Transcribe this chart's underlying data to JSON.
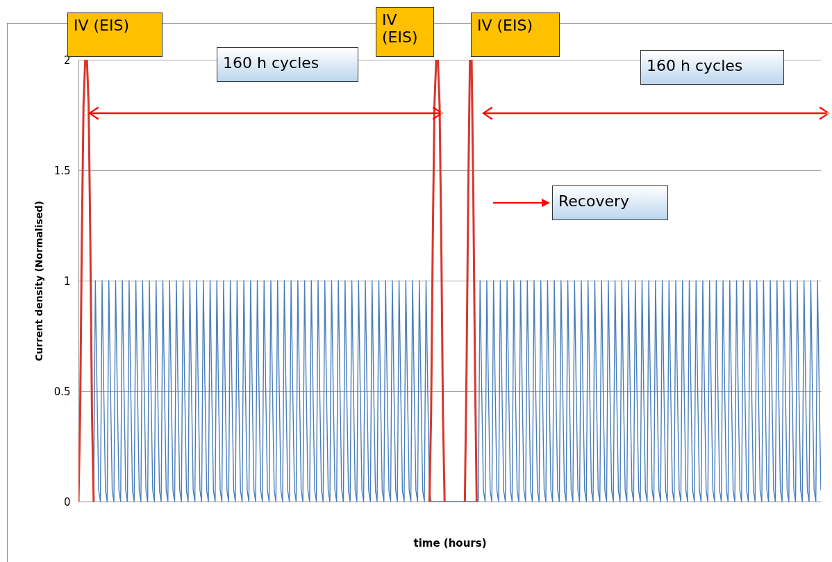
{
  "chart_data": {
    "type": "line",
    "xlabel": "time (hours)",
    "ylabel": "Current density (Normalised)",
    "categories": [
      null,
      null,
      null,
      null,
      null,
      null,
      null,
      null,
      null,
      null,
      null,
      null,
      null,
      null,
      null,
      null,
      null,
      null,
      null,
      null,
      null,
      null,
      null,
      null,
      null,
      null,
      null,
      null,
      null,
      null,
      null,
      null,
      null,
      null,
      null,
      null,
      null,
      null,
      null,
      null,
      null,
      null,
      null,
      null,
      null,
      null,
      null,
      null,
      null,
      null,
      null,
      null,
      null,
      null,
      null,
      null,
      null,
      null,
      null,
      null,
      null,
      null,
      null,
      null,
      null,
      null,
      null,
      null,
      null,
      null,
      null,
      null,
      null,
      null,
      null,
      null,
      null,
      null,
      null,
      null,
      null,
      null,
      null,
      null,
      null,
      null,
      null,
      null,
      null,
      null,
      null,
      null,
      null,
      null,
      null,
      null,
      null,
      null,
      null,
      null,
      null,
      null,
      null,
      null,
      null,
      null,
      null,
      null,
      null,
      null,
      null,
      null,
      null,
      null,
      null,
      null,
      null,
      null,
      null,
      null,
      null,
      null,
      null,
      null,
      null,
      null,
      null,
      null,
      null,
      null,
      null,
      null,
      null,
      null,
      null,
      null,
      null,
      null,
      null,
      null,
      null,
      null,
      null,
      null,
      null,
      null,
      null,
      null,
      null,
      null,
      null,
      null,
      null,
      null,
      null,
      null,
      null,
      null,
      null,
      null,
      null,
      null,
      null,
      null,
      null,
      null,
      null,
      null,
      null,
      null,
      null,
      null,
      null,
      null,
      null,
      null,
      null,
      null,
      null,
      null,
      null,
      null,
      null,
      null,
      null,
      null,
      null,
      null,
      null,
      null,
      null,
      null,
      null,
      null,
      null,
      null,
      null,
      null,
      null,
      null,
      null,
      null,
      null,
      null,
      null,
      null,
      null,
      null,
      null,
      null,
      null,
      null,
      null,
      null,
      null,
      null,
      null,
      null,
      null,
      null,
      null,
      null,
      null,
      null,
      null,
      null,
      null,
      null,
      null,
      null,
      null,
      null,
      null,
      null,
      null,
      null,
      null,
      null,
      null,
      null,
      null,
      null,
      null,
      null,
      null,
      null,
      null,
      null,
      null,
      null,
      null,
      null,
      null,
      null,
      null,
      null,
      null,
      null,
      null,
      null,
      null,
      null,
      null,
      null,
      null,
      null,
      null,
      null,
      null,
      null,
      null,
      null,
      null,
      null,
      null,
      null,
      null,
      null,
      null,
      null,
      null,
      null,
      null,
      null,
      null,
      null,
      null,
      null,
      null,
      null,
      null,
      null,
      null,
      null,
      null,
      null,
      null,
      null,
      null,
      null,
      null,
      null,
      null,
      null,
      null,
      null,
      null,
      null,
      null,
      null,
      null,
      null,
      null,
      null,
      null,
      null,
      null,
      null,
      null,
      null,
      null,
      null,
      null,
      null,
      null,
      null,
      null,
      null,
      null,
      null,
      null,
      null,
      null,
      null,
      null,
      null,
      null,
      null,
      null,
      null,
      null,
      null,
      null,
      null,
      null,
      null,
      null,
      null,
      null,
      null,
      null,
      null,
      null,
      null,
      null,
      null,
      null,
      null,
      null,
      null,
      null,
      null,
      null,
      null,
      null,
      null,
      null,
      null,
      null,
      null,
      null,
      null,
      null,
      null,
      null,
      null,
      null,
      null,
      null,
      null,
      null,
      null,
      null,
      null,
      null,
      null,
      null,
      null,
      null,
      null,
      null,
      null,
      null,
      null,
      null,
      null,
      null,
      null,
      null,
      null,
      null,
      null,
      null,
      null,
      null,
      null,
      null,
      null,
      null,
      null,
      null,
      null,
      null,
      null,
      null,
      null,
      null,
      null,
      null,
      null,
      null,
      null,
      null,
      null,
      null,
      null,
      null,
      null,
      null,
      null,
      null,
      null,
      null,
      null,
      null,
      null,
      null,
      null,
      null,
      null,
      null
    ],
    "series": [
      {
        "color": "#4a7ebb",
        "values": [
          null,
          null,
          null,
          null,
          null,
          null,
          null,
          null,
          null,
          0,
          1,
          0.5,
          0.05,
          0,
          1,
          0.5,
          0.05,
          0,
          1,
          0.5,
          0.05,
          0,
          1,
          0.5,
          0.05,
          0,
          1,
          0.5,
          0.05,
          0,
          1,
          0.5,
          0.05,
          0,
          1,
          0.5,
          0.05,
          0,
          1,
          0.5,
          0.05,
          0,
          1,
          0.5,
          0.05,
          0,
          1,
          0.5,
          0.05,
          0,
          1,
          0.5,
          0.05,
          0,
          1,
          0.5,
          0.05,
          0,
          1,
          0.5,
          0.05,
          0,
          1,
          0.5,
          0.05,
          0,
          1,
          0.5,
          0.05,
          0,
          1,
          0.5,
          0.05,
          0,
          1,
          0.5,
          0.05,
          0,
          1,
          0.5,
          0.05,
          0,
          1,
          0.5,
          0.05,
          0,
          1,
          0.5,
          0.05,
          0,
          1,
          0.5,
          0.05,
          0,
          1,
          0.5,
          0.05,
          0,
          1,
          0.5,
          0.05,
          0,
          1,
          0.5,
          0.05,
          0,
          1,
          0.5,
          0.05,
          0,
          1,
          0.5,
          0.05,
          0,
          1,
          0.5,
          0.05,
          0,
          1,
          0.5,
          0.05,
          0,
          1,
          0.5,
          0.05,
          0,
          1,
          0.5,
          0.05,
          0,
          1,
          0.5,
          0.05,
          0,
          1,
          0.5,
          0.05,
          0,
          1,
          0.5,
          0.05,
          0,
          1,
          0.5,
          0.05,
          0,
          1,
          0.5,
          0.05,
          0,
          1,
          0.5,
          0.05,
          0,
          1,
          0.5,
          0.05,
          0,
          1,
          0.5,
          0.05,
          0,
          1,
          0.5,
          0.05,
          0,
          1,
          0.5,
          0.05,
          0,
          1,
          0.5,
          0.05,
          0,
          1,
          0.5,
          0.05,
          0,
          1,
          0.5,
          0.05,
          0,
          1,
          0.5,
          0.05,
          0,
          1,
          0.5,
          0.05,
          0,
          1,
          0.5,
          0.05,
          0,
          1,
          0.5,
          0.05,
          0,
          1,
          0.5,
          0.05,
          0,
          1,
          0.5,
          0.05,
          0,
          1,
          0.5,
          0.05,
          0,
          0,
          0,
          0,
          0,
          0,
          0,
          0,
          0,
          0,
          0,
          0,
          0,
          0,
          0,
          0,
          0,
          0,
          0,
          0,
          0,
          0,
          0,
          0,
          0,
          0,
          0,
          0,
          0,
          1,
          0.5,
          0.05,
          0,
          1,
          0.5,
          0.05,
          0,
          1,
          0.5,
          0.05,
          0,
          1,
          0.5,
          0.05,
          0,
          1,
          0.5,
          0.05,
          0,
          1,
          0.5,
          0.05,
          0,
          1,
          0.5,
          0.05,
          0,
          1,
          0.5,
          0.05,
          0,
          1,
          0.5,
          0.05,
          0,
          1,
          0.5,
          0.05,
          0,
          1,
          0.5,
          0.05,
          0,
          1,
          0.5,
          0.05,
          0,
          1,
          0.5,
          0.05,
          0,
          1,
          0.5,
          0.05,
          0,
          1,
          0.5,
          0.05,
          0,
          1,
          0.5,
          0.05,
          0,
          1,
          0.5,
          0.05,
          0,
          1,
          0.5,
          0.05,
          0,
          1,
          0.5,
          0.05,
          0,
          1,
          0.5,
          0.05,
          0,
          1,
          0.5,
          0.05,
          0,
          1,
          0.5,
          0.05,
          0,
          1,
          0.5,
          0.05,
          0,
          1,
          0.5,
          0.05,
          0,
          1,
          0.5,
          0.05,
          0,
          1,
          0.5,
          0.05,
          0,
          1,
          0.5,
          0.05,
          0,
          1,
          0.5,
          0.05,
          0,
          1,
          0.5,
          0.05,
          0,
          1,
          0.5,
          0.05,
          0,
          1,
          0.5,
          0.05,
          0,
          1,
          0.5,
          0.05,
          0,
          1,
          0.5,
          0.05,
          0,
          1,
          0.5,
          0.05,
          0,
          1,
          0.5,
          0.05,
          0,
          1,
          0.5,
          0.05,
          0,
          1,
          0.5,
          0.05,
          0,
          1,
          0.5,
          0.05,
          0,
          1,
          0.5,
          0.05,
          0,
          1,
          0.5,
          0.05,
          0,
          1,
          0.5,
          0.05,
          0,
          1,
          0.5,
          0.05,
          0,
          1,
          0.5,
          0.05,
          0,
          1,
          0.5,
          0.05,
          0,
          1,
          0.5,
          0.05,
          0,
          1,
          0.5,
          0.05,
          0,
          1,
          0.5,
          0.05,
          0,
          1,
          0.5,
          0.05,
          0,
          1,
          0.5,
          0.05,
          0,
          1,
          0.5,
          0.05,
          0,
          1,
          0.5,
          0.05
        ]
      },
      {
        "color": "#d9362b",
        "values": [
          0,
          0.4,
          1.2,
          1.8,
          2,
          2,
          1.8,
          1.2,
          0.4,
          0,
          null,
          null,
          null,
          null,
          null,
          null,
          null,
          null,
          null,
          null,
          null,
          null,
          null,
          null,
          null,
          null,
          null,
          null,
          null,
          null,
          null,
          null,
          null,
          null,
          null,
          null,
          null,
          null,
          null,
          null,
          null,
          null,
          null,
          null,
          null,
          null,
          null,
          null,
          null,
          null,
          null,
          null,
          null,
          null,
          null,
          null,
          null,
          null,
          null,
          null,
          null,
          null,
          null,
          null,
          null,
          null,
          null,
          null,
          null,
          null,
          null,
          null,
          null,
          null,
          null,
          null,
          null,
          null,
          null,
          null,
          null,
          null,
          null,
          null,
          null,
          null,
          null,
          null,
          null,
          null,
          null,
          null,
          null,
          null,
          null,
          null,
          null,
          null,
          null,
          null,
          null,
          null,
          null,
          null,
          null,
          null,
          null,
          null,
          null,
          null,
          null,
          null,
          null,
          null,
          null,
          null,
          null,
          null,
          null,
          null,
          null,
          null,
          null,
          null,
          null,
          null,
          null,
          null,
          null,
          null,
          null,
          null,
          null,
          null,
          null,
          null,
          null,
          null,
          null,
          null,
          null,
          null,
          null,
          null,
          null,
          null,
          null,
          null,
          null,
          null,
          null,
          null,
          null,
          null,
          null,
          null,
          null,
          null,
          null,
          null,
          null,
          null,
          null,
          null,
          null,
          null,
          null,
          null,
          null,
          null,
          null,
          null,
          null,
          null,
          null,
          null,
          null,
          null,
          null,
          null,
          null,
          null,
          null,
          null,
          null,
          null,
          null,
          null,
          null,
          null,
          null,
          null,
          null,
          null,
          null,
          null,
          null,
          null,
          null,
          null,
          null,
          null,
          null,
          null,
          null,
          null,
          null,
          null,
          0,
          0.4,
          1.2,
          1.8,
          2,
          2,
          1.8,
          1.2,
          0.4,
          0,
          null,
          null,
          null,
          null,
          null,
          null,
          null,
          null,
          null,
          null,
          null,
          0,
          0.6,
          1.4,
          2,
          2,
          1.4,
          0.6,
          0,
          null,
          null,
          null,
          null,
          null,
          null,
          null,
          null,
          null,
          null,
          null,
          null,
          null,
          null,
          null,
          null,
          null,
          null,
          null,
          null,
          null,
          null,
          null,
          null,
          null,
          null,
          null,
          null,
          null,
          null,
          null,
          null,
          null,
          null,
          null,
          null,
          null,
          null,
          null,
          null,
          null,
          null,
          null,
          null,
          null,
          null,
          null,
          null,
          null,
          null,
          null,
          null,
          null,
          null,
          null,
          null,
          null,
          null,
          null,
          null,
          null,
          null,
          null,
          null,
          null,
          null,
          null,
          null,
          null,
          null,
          null,
          null,
          null,
          null,
          null,
          null,
          null,
          null,
          null,
          null,
          null,
          null,
          null,
          null,
          null,
          null,
          null,
          null,
          null,
          null,
          null,
          null,
          null,
          null,
          null,
          null,
          null,
          null,
          null,
          null,
          null,
          null,
          null,
          null,
          null,
          null,
          null,
          null,
          null,
          null,
          null,
          null,
          null,
          null,
          null,
          null,
          null,
          null,
          null,
          null,
          null,
          null,
          null,
          null,
          null,
          null,
          null,
          null,
          null,
          null,
          null,
          null,
          null,
          null,
          null,
          null,
          null,
          null,
          null,
          null,
          null,
          null,
          null,
          null,
          null,
          null,
          null,
          null,
          null,
          null,
          null,
          null,
          null,
          null,
          null,
          null,
          null,
          null,
          null,
          null,
          null,
          null,
          null,
          null,
          null,
          null,
          null,
          null,
          null,
          null,
          null,
          null,
          null,
          null,
          null,
          null,
          null,
          null,
          null,
          null,
          null,
          null,
          null,
          null,
          null,
          null,
          null,
          null,
          null,
          null,
          null,
          null,
          null,
          null,
          null,
          null,
          null,
          null,
          null,
          null,
          null,
          null,
          null,
          null
        ]
      }
    ],
    "ylim": [
      0,
      2
    ],
    "yticks": [
      0,
      0.5,
      1,
      1.5,
      2
    ],
    "grid": "y",
    "tick_labels": "y",
    "annotations": [
      "IV (EIS)",
      "160 h cycles",
      "IV (EIS)",
      "IV (EIS)",
      "160 h cycles",
      "Recovery"
    ]
  }
}
